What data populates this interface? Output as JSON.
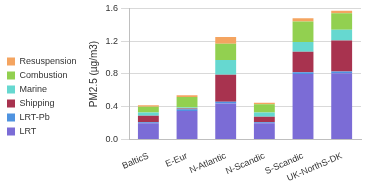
{
  "chart_data": {
    "type": "bar",
    "stacked": true,
    "y_label": "PM2.5 (µg/m3)",
    "categories": [
      "BalticS",
      "E-Eur",
      "N-Atlantic",
      "N-Scandic",
      "S-Scandic",
      "UK-NorthS-DK"
    ],
    "series": [
      {
        "name": "LRT",
        "color": "#7b6cd6",
        "values": [
          0.2,
          0.35,
          0.44,
          0.2,
          0.8,
          0.81
        ]
      },
      {
        "name": "LRT-Pb",
        "color": "#4f93e0",
        "values": [
          0.01,
          0.02,
          0.02,
          0.01,
          0.02,
          0.02
        ]
      },
      {
        "name": "Shipping",
        "color": "#a8334f",
        "values": [
          0.08,
          0.01,
          0.33,
          0.07,
          0.25,
          0.38
        ]
      },
      {
        "name": "Marine",
        "color": "#66d8d0",
        "values": [
          0.04,
          0.01,
          0.18,
          0.05,
          0.12,
          0.13
        ]
      },
      {
        "name": "Combustion",
        "color": "#92d050",
        "values": [
          0.07,
          0.13,
          0.2,
          0.1,
          0.25,
          0.2
        ]
      },
      {
        "name": "Resuspension",
        "color": "#f4a460",
        "values": [
          0.02,
          0.02,
          0.08,
          0.02,
          0.04,
          0.03
        ]
      }
    ],
    "ylim": [
      0,
      1.6
    ],
    "yticks": [
      {
        "value": 0,
        "label": "0.0"
      },
      0.4,
      0.8,
      1.2,
      1.6
    ],
    "grid": true,
    "legend": "left"
  }
}
